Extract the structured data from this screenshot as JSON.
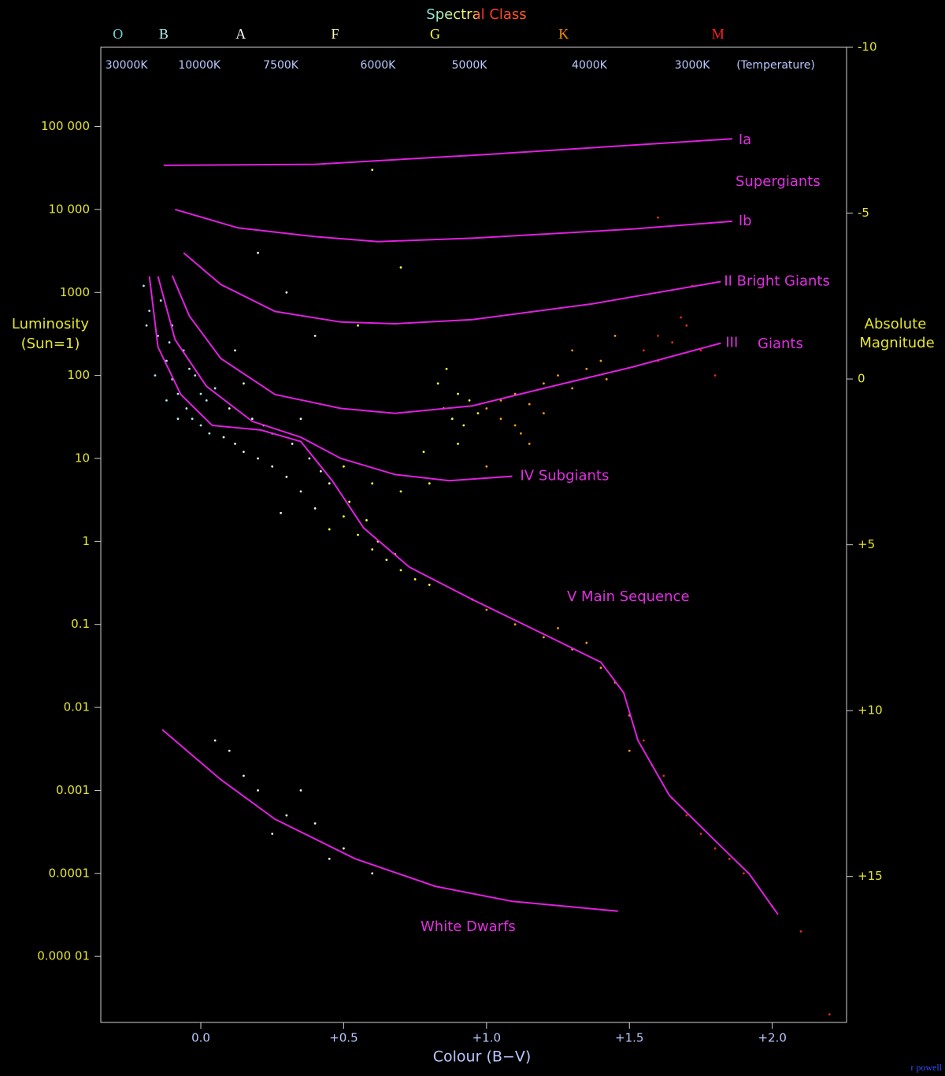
{
  "chart_data": {
    "type": "scatter",
    "title": "Spectral Class",
    "xlabel": "Colour (B−V)",
    "ylabel": [
      "Luminosity",
      "(Sun=1)"
    ],
    "y2label": [
      "Absolute",
      "Magnitude"
    ],
    "temperature_label": "(Temperature)",
    "credit": "r powell",
    "log_y": true,
    "xlim": [
      -0.35,
      2.26
    ],
    "ylim": [
      1.6e-06,
      900000
    ],
    "y2lim": [
      -10,
      19.4
    ],
    "xticks": [
      {
        "value": 0,
        "label": "0.0"
      },
      {
        "value": 0.5,
        "label": "+0.5"
      },
      {
        "value": 1.0,
        "label": "+1.0"
      },
      {
        "value": 1.5,
        "label": "+1.5"
      },
      {
        "value": 2.0,
        "label": "+2.0"
      }
    ],
    "yticks": [
      {
        "value": 100000,
        "label": "100 000"
      },
      {
        "value": 10000,
        "label": "10 000"
      },
      1000,
      100,
      10,
      1,
      0.1,
      0.01,
      0.001,
      0.0001,
      {
        "value": 1e-05,
        "label": "0.000 01"
      }
    ],
    "y2ticks": [
      -10,
      -5,
      0,
      {
        "value": 5,
        "label": "+5"
      },
      {
        "value": 10,
        "label": "+10"
      },
      {
        "value": 15,
        "label": "+15"
      }
    ],
    "temperature_ticks": [
      {
        "value": -0.26,
        "label": "30000K"
      },
      {
        "value": -0.005,
        "label": "10000K"
      },
      {
        "value": 0.28,
        "label": "7500K"
      },
      {
        "value": 0.62,
        "label": "6000K"
      },
      {
        "value": 0.94,
        "label": "5000K"
      },
      {
        "value": 1.36,
        "label": "4000K"
      },
      {
        "value": 1.72,
        "label": "3000K"
      }
    ],
    "spectral_classes": [
      {
        "value": -0.29,
        "label": "O",
        "color": "#70d0d0"
      },
      {
        "value": -0.13,
        "label": "B",
        "color": "#b0f0f0"
      },
      {
        "value": 0.14,
        "label": "A",
        "color": "#ffffff"
      },
      {
        "value": 0.47,
        "label": "F",
        "color": "#ffffc0"
      },
      {
        "value": 0.82,
        "label": "G",
        "color": "#ffff30"
      },
      {
        "value": 1.27,
        "label": "K",
        "color": "#ff9000"
      },
      {
        "value": 1.81,
        "label": "M",
        "color": "#ff2020"
      }
    ],
    "series": [
      {
        "color": "#b0e8f4",
        "x": [
          -0.2,
          -0.18,
          -0.15,
          -0.12,
          -0.1,
          -0.08,
          -0.05,
          -0.03,
          0.0,
          -0.14,
          -0.1,
          -0.06,
          -0.02,
          0.02,
          -0.16,
          -0.12,
          -0.08,
          0.03,
          -0.19,
          -0.11,
          0.05,
          -0.04,
          0.0
        ],
        "values": [
          1200,
          600,
          300,
          150,
          90,
          60,
          40,
          30,
          25,
          800,
          400,
          200,
          100,
          50,
          100,
          50,
          30,
          20,
          400,
          250,
          70,
          120,
          60
        ]
      },
      {
        "color": "#f2f2e2",
        "x": [
          0.08,
          0.12,
          0.15,
          0.2,
          0.25,
          0.3,
          0.35,
          0.4,
          0.1,
          0.18,
          0.25,
          0.32,
          0.38,
          0.45,
          0.15,
          0.3,
          0.4,
          0.2,
          0.1,
          0.2,
          0.3,
          0.4,
          0.5,
          0.35,
          0.05,
          0.15,
          0.25,
          0.45,
          0.6,
          0.22,
          0.28,
          0.42,
          0.12,
          0.35
        ],
        "values": [
          18,
          15,
          12,
          10,
          8,
          6,
          4,
          2.5,
          40,
          30,
          20,
          15,
          10,
          5,
          80,
          1000,
          300,
          3000,
          0.003,
          0.001,
          0.0005,
          0.0004,
          0.0002,
          0.001,
          0.004,
          0.0015,
          0.0003,
          0.00015,
          0.0001,
          25,
          2.2,
          7,
          200,
          30
        ]
      },
      {
        "color": "#ffff40",
        "x": [
          0.5,
          0.55,
          0.6,
          0.65,
          0.7,
          0.75,
          0.8,
          0.52,
          0.58,
          0.62,
          0.68,
          0.5,
          0.6,
          0.7,
          0.8,
          0.85,
          0.9,
          0.88,
          0.92,
          0.83,
          0.9,
          0.95,
          0.55,
          0.7,
          0.6,
          0.45,
          0.78,
          0.86,
          0.94,
          0.97
        ],
        "values": [
          2,
          1.2,
          0.8,
          0.6,
          0.45,
          0.35,
          0.3,
          3,
          1.8,
          1.0,
          0.7,
          8,
          5,
          4,
          5,
          40,
          60,
          30,
          25,
          80,
          15,
          0.2,
          400,
          2000,
          30000,
          1.4,
          12,
          120,
          50,
          35
        ]
      },
      {
        "color": "#ff9a20",
        "x": [
          1.0,
          1.05,
          1.1,
          1.15,
          1.2,
          1.25,
          1.3,
          1.35,
          1.4,
          1.05,
          1.1,
          1.2,
          1.0,
          1.1,
          1.2,
          1.3,
          1.4,
          1.45,
          1.5,
          1.3,
          1.45,
          1.0,
          1.15,
          1.5,
          1.25,
          1.35,
          1.42,
          1.12
        ],
        "values": [
          40,
          50,
          60,
          45,
          80,
          100,
          70,
          120,
          150,
          30,
          25,
          35,
          0.15,
          0.1,
          0.07,
          0.05,
          0.03,
          0.02,
          0.008,
          200,
          300,
          8,
          15,
          0.003,
          0.09,
          0.06,
          90,
          20
        ]
      },
      {
        "color": "#e03010",
        "x": [
          1.55,
          1.6,
          1.65,
          1.7,
          1.75,
          1.6,
          1.58,
          1.65,
          1.7,
          1.8,
          1.9,
          2.0,
          1.55,
          1.62,
          1.75,
          1.85,
          1.68,
          1.8,
          1.72,
          1.6,
          2.1,
          2.2
        ],
        "values": [
          200,
          300,
          250,
          400,
          200,
          150,
          0.002,
          0.0008,
          0.0005,
          0.0002,
          0.0001,
          4e-05,
          0.004,
          0.0015,
          0.0003,
          0.00015,
          500,
          100,
          1200,
          8000,
          2e-05,
          2e-06
        ]
      }
    ],
    "curves": [
      {
        "name": "Ia",
        "color": "#e020e0",
        "x": [
          -0.13,
          0.4,
          1.0,
          1.86
        ],
        "values": [
          34000,
          35000,
          46000,
          71000
        ]
      },
      {
        "name": "Ib",
        "color": "#e020e0",
        "x": [
          -0.09,
          0.13,
          0.4,
          0.62,
          0.95,
          1.51,
          1.86
        ],
        "values": [
          10000,
          6000,
          4700,
          4100,
          4500,
          5800,
          7200
        ]
      },
      {
        "name": "II Bright Giants",
        "color": "#e020e0",
        "x": [
          -0.06,
          0.07,
          0.26,
          0.49,
          0.68,
          0.95,
          1.37,
          1.82
        ],
        "values": [
          3000,
          1250,
          590,
          440,
          420,
          470,
          730,
          1350
        ]
      },
      {
        "name": "III",
        "color": "#e020e0",
        "x": [
          -0.1,
          -0.04,
          0.07,
          0.26,
          0.49,
          0.68,
          0.95,
          1.23,
          1.51,
          1.82
        ],
        "values": [
          1600,
          520,
          160,
          59,
          40,
          35,
          43,
          74,
          126,
          245
        ]
      },
      {
        "name": "IV  Subgiants",
        "color": "#e020e0",
        "x": [
          -0.15,
          -0.09,
          0.02,
          0.18,
          0.35,
          0.49,
          0.68,
          0.87,
          1.09
        ],
        "values": [
          1560,
          270,
          74,
          28,
          18,
          10,
          6.4,
          5.4,
          6.1
        ]
      },
      {
        "name": "V  Main Sequence",
        "color": "#e020e0",
        "x": [
          -0.18,
          -0.15,
          -0.07,
          0.04,
          0.21,
          0.35,
          0.46,
          0.57,
          0.73,
          0.95,
          1.23,
          1.4,
          1.48,
          1.53,
          1.64,
          1.78,
          1.92,
          2.02
        ],
        "values": [
          1560,
          220,
          59,
          25,
          22,
          16,
          5.4,
          1.45,
          0.49,
          0.2,
          0.068,
          0.035,
          0.015,
          0.004,
          0.00087,
          0.00029,
          9.8e-05,
          3.2e-05
        ]
      },
      {
        "name": "White Dwarfs",
        "color": "#e020e0",
        "x": [
          -0.135,
          0.07,
          0.26,
          0.54,
          0.82,
          1.09,
          1.46
        ],
        "values": [
          0.0054,
          0.00135,
          0.00045,
          0.00015,
          7e-05,
          4.6e-05,
          3.5e-05
        ]
      }
    ],
    "annotations": [
      "Supergiants",
      "Giants"
    ]
  }
}
